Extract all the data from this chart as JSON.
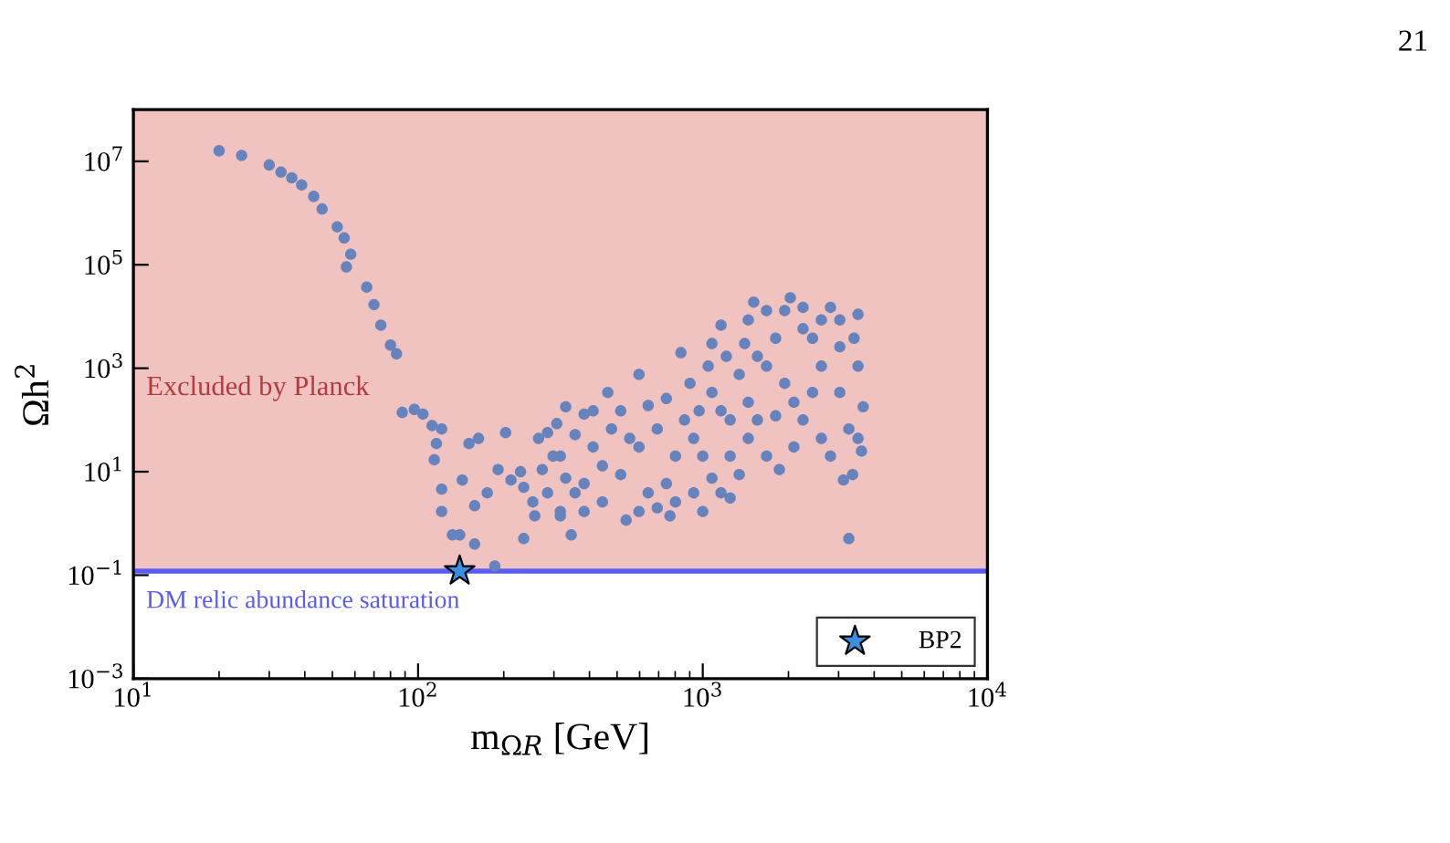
{
  "chart_data": {
    "type": "scatter",
    "xlabel": "m$_{ΩR}$ [GeV]",
    "ylabel": "Ωh$^{2}$",
    "annotations": [
      "21"
    ],
    "log": "xy",
    "grid": false,
    "legend": "bottom right",
    "xlim": [
      10,
      10000
    ],
    "ylim": [
      0.001,
      100000000
    ],
    "xticks": [
      {
        "value": 10,
        "label": "10$^{1}$"
      },
      {
        "value": 100,
        "label": "10$^{2}$"
      },
      {
        "value": 1000,
        "label": "10$^{3}$"
      },
      {
        "value": 10000,
        "label": "10$^{4}$"
      }
    ],
    "yticks": [
      {
        "value": 0.001,
        "label": "10$^{−3}$"
      },
      {
        "value": 0.1,
        "label": "10$^{−1}$"
      },
      {
        "value": 10,
        "label": "10$^{1}$"
      },
      {
        "value": 1000,
        "label": "10$^{3}$"
      },
      {
        "value": 100000,
        "label": "10$^{5}$"
      },
      {
        "value": 10000000,
        "label": "10$^{7}$"
      }
    ],
    "bands": [
      {
        "axis": "y",
        "from": 0.12,
        "to": 100000000,
        "label": "Excluded by Planck",
        "color": "#f0c2c0"
      }
    ],
    "ref_lines": [
      {
        "axis": "y",
        "value": 0.12,
        "label": "DM relic abundance saturation",
        "color": "#5b5bf5"
      }
    ],
    "series": [
      {
        "color": "#6683bd",
        "marker": "circle",
        "x": [
          20,
          24,
          30,
          33,
          36,
          39,
          43,
          46,
          52,
          55,
          58,
          56,
          66,
          70,
          74,
          80,
          84,
          88,
          97,
          104,
          112,
          121,
          116,
          114,
          121,
          121,
          132,
          140,
          158,
          186,
          203,
          191,
          163,
          151,
          143,
          158,
          175,
          212,
          235,
          235,
          257,
          273,
          316,
          330,
          285,
          316,
          1510,
          2030,
          3510,
          3660,
          3610,
          3360,
          3260,
          3120,
          1858,
          1248,
          767,
          538,
          345,
          316,
          298,
          383,
          464,
          597,
          838,
          1077,
          1159,
          1445,
          1675,
          2250,
          2610,
          3030,
          1940,
          1675,
          1445,
          1248,
          1077,
          929,
          802,
          692,
          597,
          515,
          444,
          383,
          2610,
          2250,
          3030,
          2810,
          3260,
          2430,
          1803,
          1556,
          1343,
          1159,
          1000,
          863,
          745,
          643,
          554,
          478,
          412,
          356,
          330,
          3510,
          3400,
          3510,
          2090,
          1675,
          1445,
          1248,
          1077,
          929,
          802,
          692,
          597,
          1940,
          2250,
          2810,
          3030,
          2610,
          1803,
          1556,
          2430,
          2090,
          1343,
          1159,
          1000,
          444,
          383,
          285,
          253,
          229,
          265,
          307,
          356,
          412,
          515,
          643,
          745,
          902,
          1045,
          1210,
          1403,
          971
        ],
        "values": [
          16000000,
          13000000,
          8500000,
          6200000,
          4800000,
          3500000,
          2100000,
          1200000,
          540000,
          330000,
          160000,
          91000,
          37000,
          17000,
          6800,
          2800,
          1900,
          140,
          160,
          130,
          78,
          67,
          35,
          17,
          4.6,
          1.7,
          0.6,
          0.6,
          0.4,
          0.15,
          57,
          11,
          44,
          35,
          6.9,
          2.2,
          3.9,
          6.9,
          5,
          0.51,
          1.4,
          11,
          20,
          180,
          57,
          1.7,
          19000,
          23000,
          11000,
          180,
          25,
          8.8,
          0.51,
          6.9,
          11,
          3.1,
          1.4,
          1.16,
          0.6,
          1.4,
          20,
          130,
          340,
          760,
          2000,
          3000,
          6800,
          8600,
          13000,
          5800,
          1100,
          2600,
          510,
          1100,
          220,
          100,
          340,
          44,
          20,
          67,
          30,
          8.8,
          13,
          5.9,
          44,
          100,
          340,
          20,
          67,
          3800,
          3800,
          1700,
          760,
          150,
          20,
          100,
          5.9,
          3.9,
          44,
          67,
          30,
          3.9,
          7.5,
          1100,
          3800,
          44,
          30,
          20,
          44,
          20,
          7.5,
          3.9,
          2.6,
          2,
          1.7,
          13000,
          15000,
          15000,
          8600,
          8600,
          120,
          100,
          340,
          220,
          8.8,
          3.9,
          1.7,
          2.6,
          1.7,
          3.9,
          2.6,
          10,
          44,
          85,
          52,
          150,
          150,
          190,
          260,
          510,
          1100,
          1700,
          3000,
          150
        ]
      },
      {
        "name": "BP2",
        "color": "#3a8fdf",
        "marker": "star",
        "x": [
          140
        ],
        "values": [
          0.12
        ]
      }
    ]
  }
}
